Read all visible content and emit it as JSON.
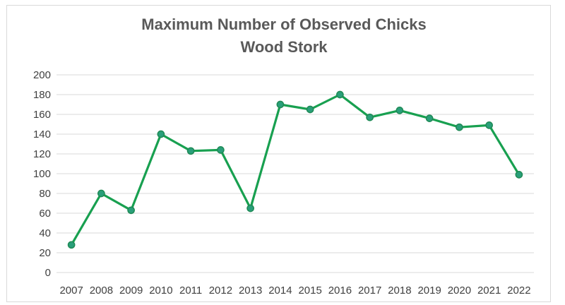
{
  "chart_data": {
    "type": "line",
    "title": "Maximum Number of Observed Chicks",
    "subtitle": "Wood Stork",
    "xlabel": "",
    "ylabel": "",
    "ylim": [
      0,
      200
    ],
    "yticks": [
      0,
      20,
      40,
      60,
      80,
      100,
      120,
      140,
      160,
      180,
      200
    ],
    "grid": "horizontal",
    "legend": "none",
    "line_color": "#18a050",
    "marker_color": "#2a9f7a",
    "categories": [
      "2007",
      "2008",
      "2009",
      "2010",
      "2011",
      "2012",
      "2013",
      "2014",
      "2015",
      "2016",
      "2017",
      "2018",
      "2019",
      "2020",
      "2021",
      "2022"
    ],
    "series": [
      {
        "values": [
          28,
          80,
          63,
          140,
          123,
          124,
          65,
          170,
          165,
          180,
          157,
          164,
          156,
          147,
          149,
          99
        ]
      }
    ]
  }
}
